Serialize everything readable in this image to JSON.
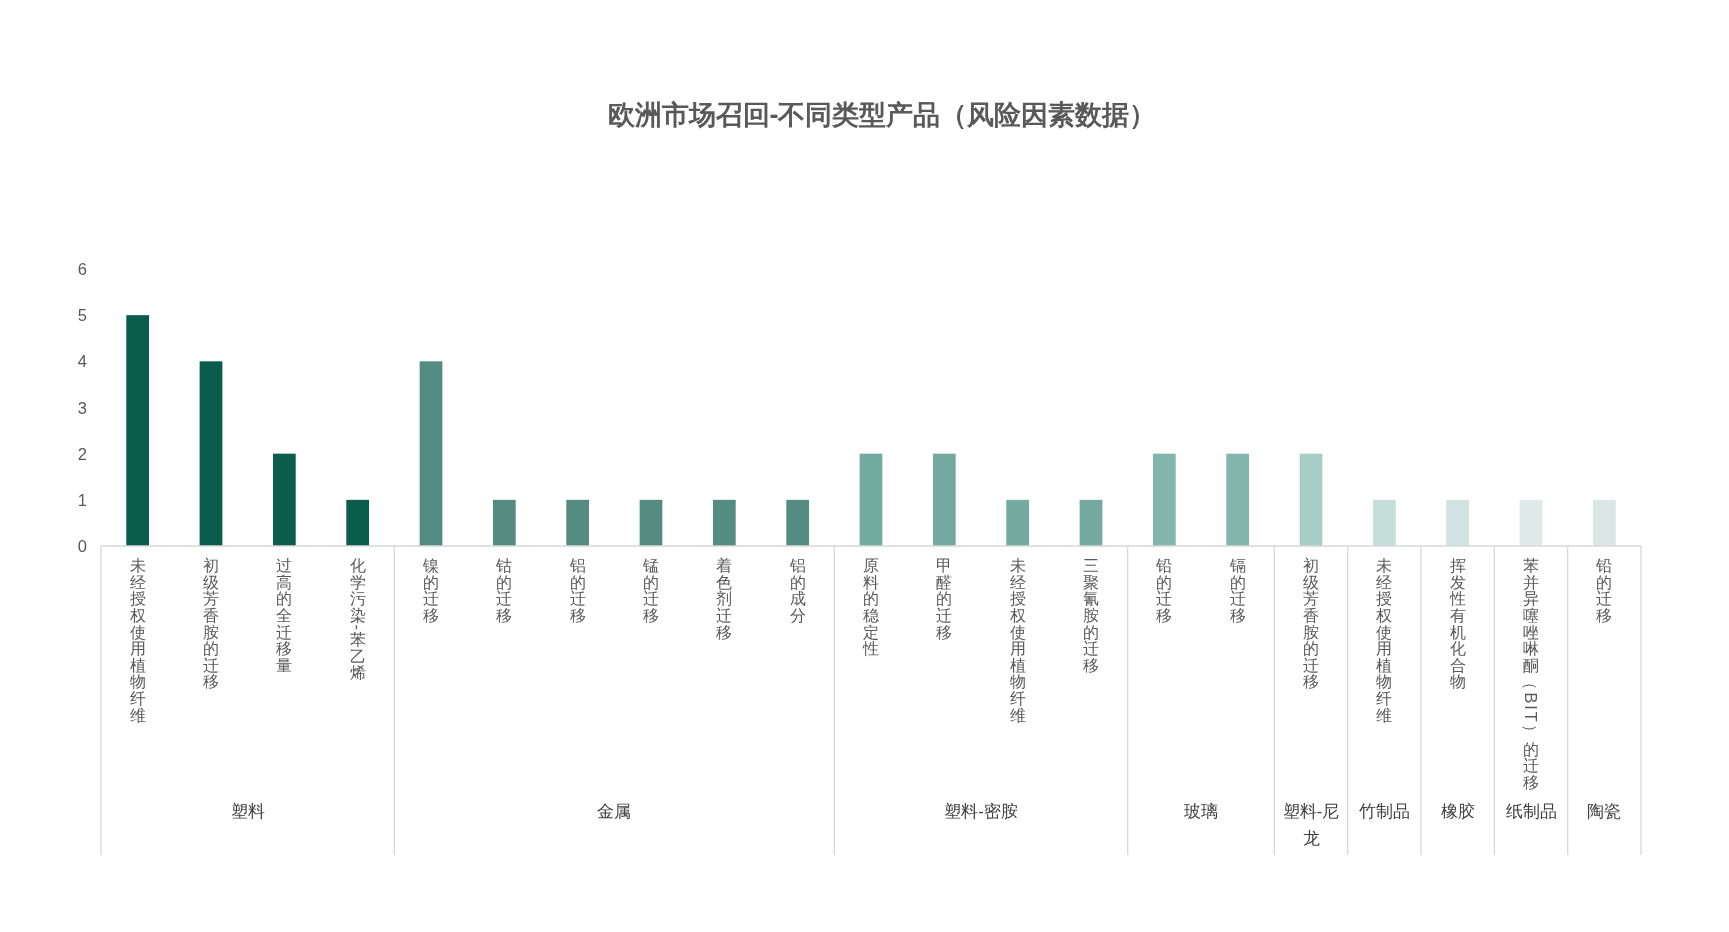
{
  "chart_data": {
    "type": "bar",
    "title": "欧洲市场召回-不同类型产品（风险因素数据）",
    "categories": [
      "未经授权使用植物纤维",
      "初级芳香胺的迁移",
      "过高的全迁移量",
      "化学污染-苯乙烯",
      "镍的迁移",
      "钴的迁移",
      "铝的迁移",
      "锰的迁移",
      "着色剂迁移",
      "铝的成分",
      "原料的稳定性",
      "甲醛的迁移",
      "未经授权使用植物纤维",
      "三聚氰胺的迁移",
      "铅的迁移",
      "镉的迁移",
      "初级芳香胺的迁移",
      "未经授权使用植物纤维",
      "挥发性有机化合物",
      "苯并异噻唑啉酮（BIT）的迁移",
      "铅的迁移"
    ],
    "values": [
      5,
      4,
      2,
      1,
      4,
      1,
      1,
      1,
      1,
      1,
      2,
      2,
      1,
      1,
      2,
      2,
      2,
      1,
      1,
      1,
      1
    ],
    "colors": [
      "#0a5c4c",
      "#0a5c4c",
      "#0a5c4c",
      "#0a5c4c",
      "#558c82",
      "#558c82",
      "#558c82",
      "#558c82",
      "#558c82",
      "#558c82",
      "#74aba0",
      "#74aba0",
      "#74aba0",
      "#74aba0",
      "#82b5ab",
      "#82b5ab",
      "#a8cdc6",
      "#c6deda",
      "#d1e4e1",
      "#e0eae9",
      "#dbe7e5"
    ],
    "annotations": [
      "塑料",
      "金属",
      "塑料-密胺",
      "玻璃",
      "塑料-尼龙",
      "竹制品",
      "橡胶",
      "纸制品",
      "陶瓷"
    ],
    "ylim": [
      0,
      6
    ],
    "yticks": [
      0,
      1,
      2,
      3,
      4,
      5,
      6
    ]
  }
}
